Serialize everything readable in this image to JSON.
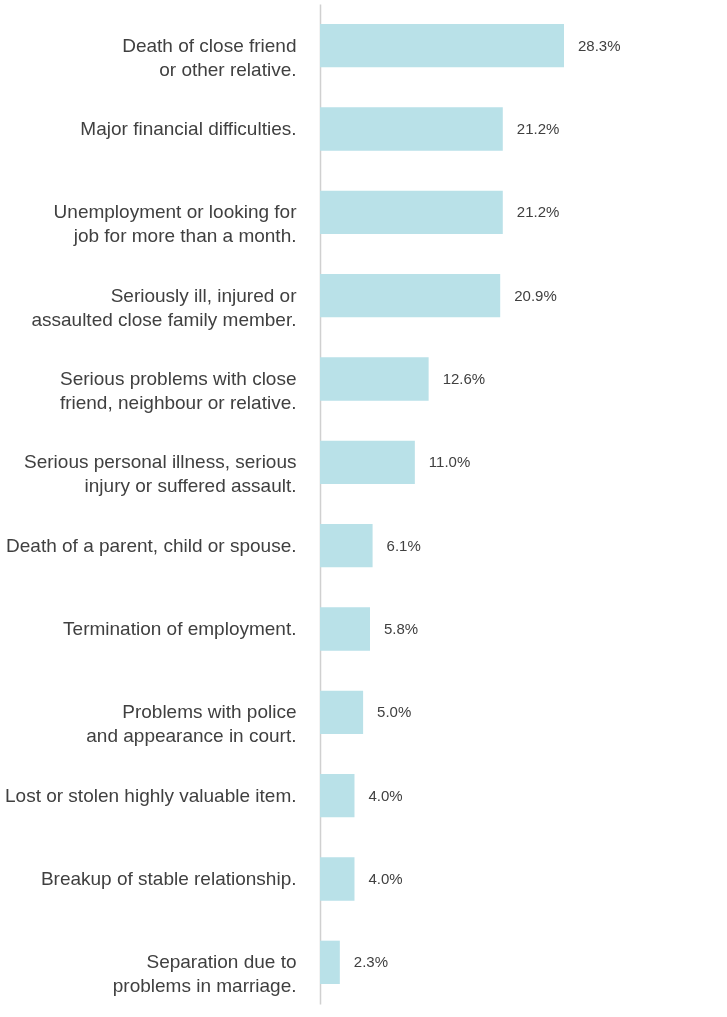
{
  "chart_data": {
    "type": "bar",
    "orientation": "horizontal",
    "tick_labels": "y",
    "categories": [
      "Death of close friend or other relative.",
      "Major financial difficulties.",
      "Unemployment or looking for job for more than a month.",
      "Seriously ill, injured or assaulted close family member.",
      "Serious problems with close friend, neighbour or relative.",
      "Serious personal illness, serious injury or suffered assault.",
      "Death of a parent, child or spouse.",
      "Termination of employment.",
      "Problems with police and appearance in court.",
      "Lost or stolen highly valuable item.",
      "Breakup of stable relationship.",
      "Separation due to problems in marriage."
    ],
    "values": [
      28.3,
      21.2,
      21.2,
      20.9,
      12.6,
      11.0,
      6.1,
      5.8,
      5.0,
      4.0,
      4.0,
      2.3
    ],
    "value_labels": [
      "28.3%",
      "21.2%",
      "21.2%",
      "20.9%",
      "12.6%",
      "11.0%",
      "6.1%",
      "5.8%",
      "5.0%",
      "4.0%",
      "4.0%",
      "2.3%"
    ],
    "color": "#b9e1e8"
  }
}
